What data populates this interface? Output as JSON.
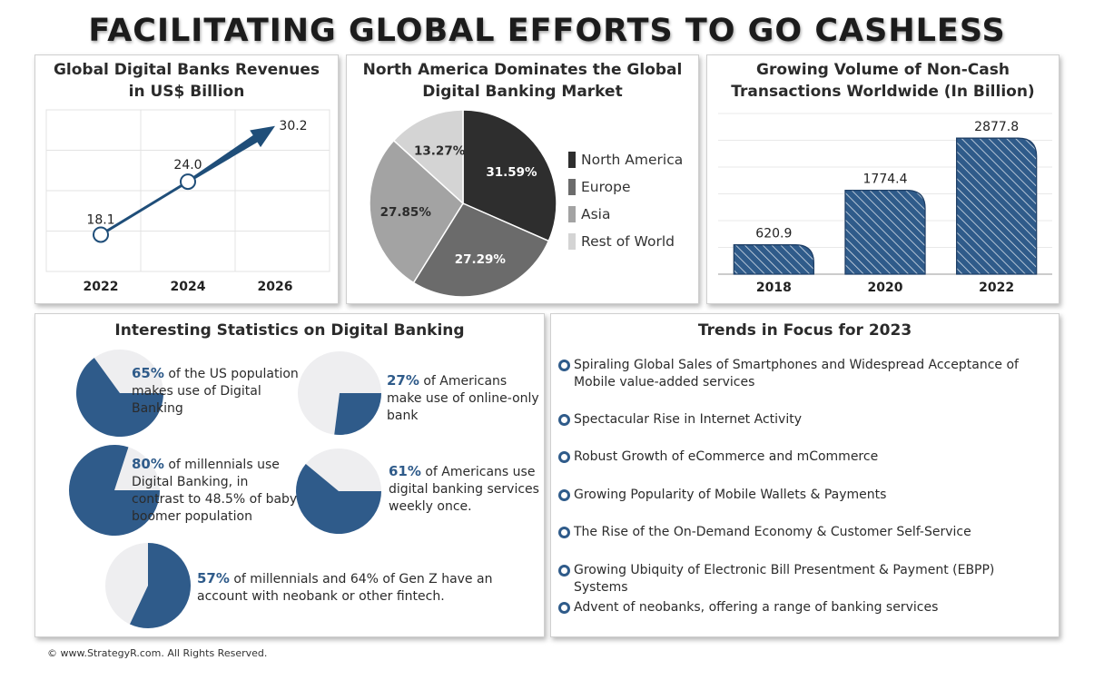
{
  "title": "FACILITATING GLOBAL EFFORTS TO GO CASHLESS",
  "revenue_panel": {
    "title_line1": "Global Digital Banks Revenues",
    "title_line2": "in US$ Billion"
  },
  "pie_panel": {
    "title_line1": "North America Dominates the Global",
    "title_line2": "Digital Banking Market"
  },
  "volume_panel": {
    "title_line1": "Growing Volume of Non-Cash",
    "title_line2": "Transactions Worldwide (In Billion)"
  },
  "chart_data": [
    {
      "type": "line",
      "title": "Global Digital Banks Revenues in US$ Billion",
      "x": [
        "2022",
        "2024",
        "2026"
      ],
      "values": [
        18.1,
        24.0,
        30.2
      ],
      "labels": [
        "18.1",
        "24.0",
        "30.2"
      ],
      "ylim": [
        14,
        32
      ],
      "grid": true,
      "color": "#1f4e79"
    },
    {
      "type": "pie",
      "title": "North America Dominates the Global Digital Banking Market",
      "categories": [
        "North America",
        "Europe",
        "Asia",
        "Rest of World"
      ],
      "values": [
        31.59,
        27.29,
        27.85,
        13.27
      ],
      "labels": [
        "31.59%",
        "27.29%",
        "27.85%",
        "13.27%"
      ],
      "colors": [
        "#2e2e2e",
        "#6b6b6b",
        "#a3a3a3",
        "#d4d4d4"
      ],
      "legend": "right"
    },
    {
      "type": "bar",
      "title": "Growing Volume of Non-Cash Transactions Worldwide (In Billion)",
      "categories": [
        "2018",
        "2020",
        "2022"
      ],
      "values": [
        620.9,
        1774.4,
        2877.8
      ],
      "labels": [
        "620.9",
        "1774.4",
        "2877.8"
      ],
      "ylim": [
        0,
        3400
      ],
      "grid": true,
      "color": "#2f5b8a"
    }
  ],
  "stats": {
    "title": "Interesting Statistics on Digital Banking",
    "items": [
      {
        "value": 65,
        "pct": "65%",
        "text": " of the US population makes use of Digital Banking"
      },
      {
        "value": 27,
        "pct": "27%",
        "text": " of Americans make use of online-only bank"
      },
      {
        "value": 80,
        "pct": "80%",
        "text": " of millennials use Digital Banking, in contrast to 48.5% of baby boomer population"
      },
      {
        "value": 61,
        "pct": "61%",
        "text": " of Americans use digital banking services weekly once."
      },
      {
        "value": 57,
        "pct": "57%",
        "text": " of millennials and 64% of Gen Z have an account with neobank or other fintech."
      }
    ],
    "fill_color": "#2f5b8a",
    "bg_color": "#eeeef0"
  },
  "trends": {
    "title": "Trends in Focus for 2023",
    "items": [
      "Spiraling Global Sales of Smartphones and Widespread Acceptance of Mobile value-added services",
      "Spectacular Rise in Internet Activity",
      "Robust Growth of eCommerce and mCommerce",
      "Growing Popularity of Mobile Wallets & Payments",
      "The Rise of the On-Demand Economy & Customer Self-Service",
      "Growing Ubiquity of Electronic Bill Presentment & Payment (EBPP) Systems",
      "Advent of neobanks, offering a range of banking services"
    ]
  },
  "footer": "© www.StrategyR.com. All Rights Reserved."
}
